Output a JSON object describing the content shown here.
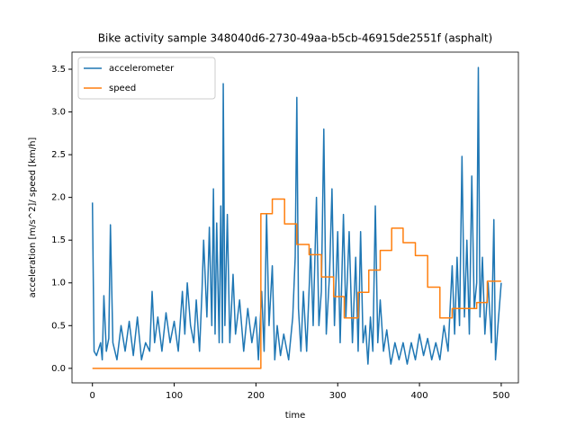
{
  "chart_data": {
    "type": "line",
    "title": "Bike activity sample 348040d6-2730-49aa-b5cb-46915de2551f (asphalt)",
    "x_label": "time",
    "y_label": "acceleration [m/s^2]/ speed [km/h]",
    "xlim": [
      -25,
      521
    ],
    "ylim": [
      -0.17,
      3.7
    ],
    "xticks": [
      0,
      100,
      200,
      300,
      400,
      500
    ],
    "yticks": [
      {
        "value": 0,
        "label": "0.0"
      },
      {
        "value": 0.5,
        "label": "0.5"
      },
      {
        "value": 1,
        "label": "1.0"
      },
      {
        "value": 1.5,
        "label": "1.5"
      },
      {
        "value": 2,
        "label": "2.0"
      },
      {
        "value": 2.5,
        "label": "2.5"
      },
      {
        "value": 3,
        "label": "3.0"
      },
      {
        "value": 3.5,
        "label": "3.5"
      }
    ],
    "legend": "upper left",
    "series": [
      {
        "name": "accelerometer",
        "color": "#1f77b4",
        "x": [
          0,
          2,
          5,
          10,
          12,
          14,
          17,
          20,
          22,
          25,
          30,
          35,
          40,
          45,
          50,
          55,
          60,
          65,
          70,
          73,
          76,
          80,
          85,
          90,
          95,
          100,
          105,
          110,
          113,
          116,
          120,
          124,
          127,
          131,
          134,
          136,
          140,
          143,
          146,
          148,
          150,
          152,
          155,
          157,
          159,
          160,
          162,
          165,
          168,
          172,
          175,
          180,
          185,
          190,
          195,
          200,
          203,
          207,
          210,
          213,
          216,
          220,
          223,
          226,
          230,
          234,
          240,
          245,
          248,
          250,
          252,
          255,
          258,
          262,
          267,
          270,
          274,
          277,
          280,
          283,
          286,
          290,
          293,
          296,
          300,
          303,
          307,
          310,
          314,
          318,
          322,
          325,
          328,
          331,
          334,
          337,
          340,
          343,
          346,
          349,
          352,
          356,
          360,
          365,
          370,
          375,
          380,
          385,
          390,
          395,
          400,
          405,
          410,
          415,
          420,
          425,
          430,
          435,
          440,
          443,
          446,
          449,
          452,
          455,
          458,
          461,
          464,
          467,
          470,
          472,
          474,
          477,
          480,
          484,
          488,
          491,
          493,
          496,
          500
        ],
        "values": [
          1.94,
          0.2,
          0.15,
          0.3,
          0.1,
          0.85,
          0.2,
          0.35,
          1.68,
          0.3,
          0.1,
          0.5,
          0.2,
          0.55,
          0.15,
          0.6,
          0.1,
          0.3,
          0.2,
          0.9,
          0.3,
          0.6,
          0.2,
          0.65,
          0.3,
          0.55,
          0.2,
          0.9,
          0.4,
          1.0,
          0.5,
          0.3,
          0.8,
          0.2,
          0.9,
          1.5,
          0.6,
          1.65,
          0.5,
          2.1,
          0.4,
          1.7,
          0.3,
          1.9,
          0.3,
          3.33,
          0.5,
          1.8,
          0.3,
          1.1,
          0.4,
          0.8,
          0.2,
          0.7,
          0.3,
          0.6,
          0.1,
          0.9,
          0.2,
          1.8,
          0.5,
          1.2,
          0.1,
          0.5,
          0.15,
          0.4,
          0.1,
          0.6,
          1.3,
          3.17,
          0.7,
          0.2,
          0.9,
          0.2,
          1.4,
          0.5,
          2.0,
          0.5,
          0.9,
          2.8,
          0.4,
          1.1,
          2.1,
          0.5,
          1.6,
          0.3,
          1.8,
          0.6,
          1.6,
          0.3,
          1.3,
          0.2,
          1.6,
          0.3,
          0.5,
          0.05,
          0.6,
          0.2,
          1.9,
          0.3,
          0.8,
          0.2,
          0.45,
          0.05,
          0.3,
          0.1,
          0.3,
          0.05,
          0.3,
          0.1,
          0.4,
          0.15,
          0.35,
          0.1,
          0.3,
          0.1,
          0.5,
          0.2,
          1.2,
          0.4,
          1.3,
          0.5,
          2.48,
          0.6,
          1.5,
          0.4,
          2.25,
          0.7,
          1.0,
          3.52,
          0.6,
          1.3,
          0.4,
          1.0,
          0.3,
          1.74,
          0.1,
          0.5,
          1.0
        ]
      },
      {
        "name": "speed",
        "color": "#ff7f0e",
        "x": [
          0,
          206,
          206,
          220,
          220,
          235,
          235,
          250,
          250,
          265,
          265,
          280,
          280,
          295,
          295,
          308,
          308,
          325,
          325,
          338,
          338,
          352,
          352,
          366,
          366,
          380,
          380,
          395,
          395,
          410,
          410,
          425,
          425,
          440,
          440,
          470,
          470,
          483,
          483,
          500
        ],
        "values": [
          0,
          0,
          1.81,
          1.81,
          1.98,
          1.98,
          1.69,
          1.69,
          1.45,
          1.45,
          1.33,
          1.33,
          1.07,
          1.07,
          0.84,
          0.84,
          0.59,
          0.59,
          0.89,
          0.89,
          1.15,
          1.15,
          1.38,
          1.38,
          1.64,
          1.64,
          1.47,
          1.47,
          1.32,
          1.32,
          0.95,
          0.95,
          0.59,
          0.59,
          0.7,
          0.7,
          0.77,
          0.77,
          1.02,
          1.02
        ]
      }
    ]
  }
}
